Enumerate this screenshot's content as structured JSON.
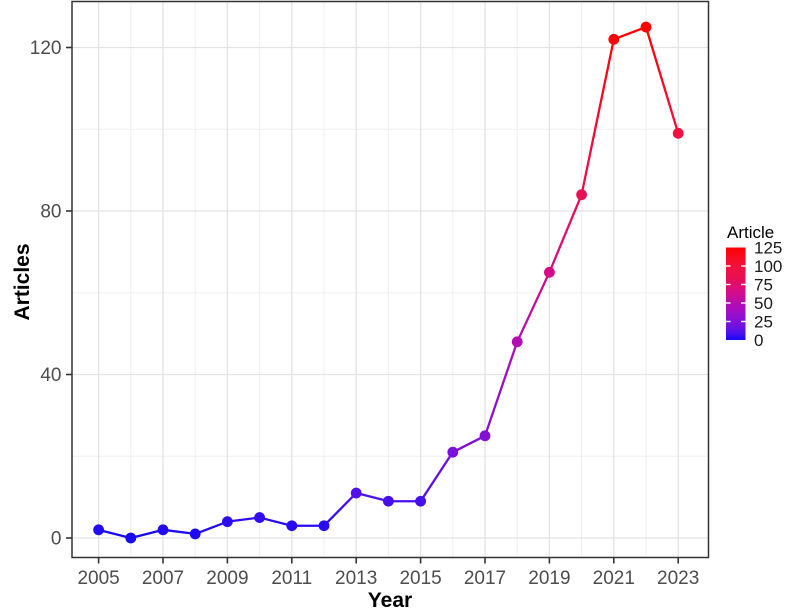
{
  "chart_data": {
    "type": "line",
    "title": "",
    "xlabel": "Year",
    "ylabel": "Articles",
    "x": [
      2005,
      2006,
      2007,
      2008,
      2009,
      2010,
      2011,
      2012,
      2013,
      2014,
      2015,
      2016,
      2017,
      2018,
      2019,
      2020,
      2021,
      2022,
      2023
    ],
    "values": [
      2,
      0,
      2,
      1,
      4,
      5,
      3,
      3,
      11,
      9,
      9,
      21,
      25,
      48,
      65,
      84,
      122,
      125,
      99
    ],
    "x_ticks": [
      2005,
      2007,
      2009,
      2011,
      2013,
      2015,
      2017,
      2019,
      2021,
      2023
    ],
    "x_minor_ticks": [
      2006,
      2008,
      2010,
      2012,
      2014,
      2016,
      2018,
      2020,
      2022
    ],
    "y_ticks": [
      0,
      40,
      80,
      120
    ],
    "y_minor_ticks": [
      20,
      60,
      100
    ],
    "xlim": [
      2004.2,
      2023.9
    ],
    "ylim": [
      -4.8,
      131.2
    ],
    "grid": true,
    "legend_position": "right",
    "color_scale": {
      "title": "Article",
      "low_label": "blue",
      "high_label": "red",
      "min": 0,
      "max": 125,
      "legend_ticks": [
        125,
        100,
        75,
        50,
        25,
        0
      ]
    },
    "gradient_stops": [
      {
        "t": 0.0,
        "color": "#1609F7"
      },
      {
        "t": 0.09,
        "color": "#5411EA"
      },
      {
        "t": 0.17,
        "color": "#7A10DB"
      },
      {
        "t": 0.3,
        "color": "#9E0FC7"
      },
      {
        "t": 0.38,
        "color": "#B10DB4"
      },
      {
        "t": 0.52,
        "color": "#D60C86"
      },
      {
        "t": 0.67,
        "color": "#E80F55"
      },
      {
        "t": 0.79,
        "color": "#F21140"
      },
      {
        "t": 1.0,
        "color": "#FC0202"
      }
    ]
  },
  "legend": {
    "title": "Article"
  },
  "colors": {
    "background": "#FFFFFF",
    "panel_background": "#FFFFFF",
    "panel_border": "#333333",
    "grid_major": "#E3E3E3",
    "grid_minor": "#F0F0F0",
    "axis_tick": "#333333",
    "tick_label": "#4D4D4D",
    "axis_title": "#000000",
    "legend_label": "#1A1A1A",
    "legend_tick": "#FFFFFF"
  }
}
